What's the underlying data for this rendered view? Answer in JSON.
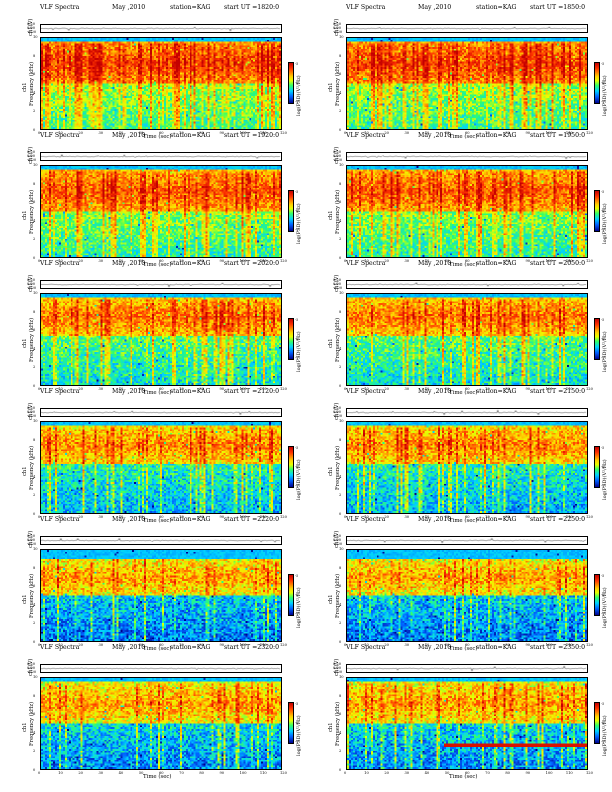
{
  "figure": {
    "panel_title": "VLF Spectra",
    "date": "May ,2010",
    "station": "station=KAG",
    "start_prefix": "start UT =",
    "ts_ylabel": "ch1(V)",
    "ts_ticks": [
      "0.20",
      "0.00",
      "-0.20"
    ],
    "freq_ylabel": "Frequency (kHz)",
    "channel_label": "ch1",
    "colorbar_label": "log(PSD)(V²/Hz)",
    "colorbar_ticks": [
      "-5",
      "-6",
      "-7"
    ],
    "xlabel": "Time (sec)",
    "x_ticks": [
      "0",
      "10",
      "20",
      "30",
      "40",
      "50",
      "60",
      "70",
      "80",
      "90",
      "100",
      "110",
      "120"
    ],
    "y_ticks": [
      "10",
      "8",
      "6",
      "4",
      "2",
      "0"
    ]
  },
  "chart_data": [
    {
      "type": "heatmap",
      "title": "VLF Spectra  May ,2010  station=KAG  start UT =1820:0",
      "start_ut": "1820:0",
      "xlabel": "Time (sec)",
      "ylabel": "Frequency (kHz)",
      "xlim": [
        0,
        120
      ],
      "ylim": [
        0,
        10
      ],
      "ts_ylim": [
        -0.2,
        0.2
      ],
      "colorbar_label": "log(PSD)(V²/Hz)",
      "band_khz": [
        5,
        9.5
      ],
      "z_base": 0.52,
      "z_band": 0.85,
      "spike_rate": 0.35,
      "noise": 0.12,
      "hum_khz": null
    },
    {
      "type": "heatmap",
      "title": "VLF Spectra  May ,2010  station=KAG  start UT =1850:0",
      "start_ut": "1850:0",
      "xlabel": "Time (sec)",
      "ylabel": "Frequency (kHz)",
      "xlim": [
        0,
        120
      ],
      "ylim": [
        0,
        10
      ],
      "ts_ylim": [
        -0.2,
        0.2
      ],
      "colorbar_label": "log(PSD)(V²/Hz)",
      "band_khz": [
        5,
        9.5
      ],
      "z_base": 0.52,
      "z_band": 0.85,
      "spike_rate": 0.38,
      "noise": 0.12,
      "hum_khz": null
    },
    {
      "type": "heatmap",
      "title": "VLF Spectra  May ,2010  station=KAG  start UT =1920:0",
      "start_ut": "1920:0",
      "xlabel": "Time (sec)",
      "ylabel": "Frequency (kHz)",
      "xlim": [
        0,
        120
      ],
      "ylim": [
        0,
        10
      ],
      "ts_ylim": [
        -0.2,
        0.2
      ],
      "colorbar_label": "log(PSD)(V²/Hz)",
      "band_khz": [
        5,
        9.5
      ],
      "z_base": 0.5,
      "z_band": 0.82,
      "spike_rate": 0.3,
      "noise": 0.12,
      "hum_khz": null
    },
    {
      "type": "heatmap",
      "title": "VLF Spectra  May ,2010  station=KAG  start UT =1950:0",
      "start_ut": "1950:0",
      "xlabel": "Time (sec)",
      "ylabel": "Frequency (kHz)",
      "xlim": [
        0,
        120
      ],
      "ylim": [
        0,
        10
      ],
      "ts_ylim": [
        -0.2,
        0.2
      ],
      "colorbar_label": "log(PSD)(V²/Hz)",
      "band_khz": [
        5,
        9.5
      ],
      "z_base": 0.5,
      "z_band": 0.82,
      "spike_rate": 0.32,
      "noise": 0.12,
      "hum_khz": null
    },
    {
      "type": "heatmap",
      "title": "VLF Spectra  May ,2010  station=KAG  start UT =2020:0",
      "start_ut": "2020:0",
      "xlabel": "Time (sec)",
      "ylabel": "Frequency (kHz)",
      "xlim": [
        0,
        120
      ],
      "ylim": [
        0,
        10
      ],
      "ts_ylim": [
        -0.2,
        0.2
      ],
      "colorbar_label": "log(PSD)(V²/Hz)",
      "band_khz": [
        5.5,
        9.5
      ],
      "z_base": 0.45,
      "z_band": 0.78,
      "spike_rate": 0.22,
      "noise": 0.13,
      "hum_khz": null
    },
    {
      "type": "heatmap",
      "title": "VLF Spectra  May ,2010  station=KAG  start UT =2050:0",
      "start_ut": "2050:0",
      "xlabel": "Time (sec)",
      "ylabel": "Frequency (kHz)",
      "xlim": [
        0,
        120
      ],
      "ylim": [
        0,
        10
      ],
      "ts_ylim": [
        -0.2,
        0.2
      ],
      "colorbar_label": "log(PSD)(V²/Hz)",
      "band_khz": [
        5.5,
        9.5
      ],
      "z_base": 0.45,
      "z_band": 0.78,
      "spike_rate": 0.22,
      "noise": 0.13,
      "hum_khz": null
    },
    {
      "type": "heatmap",
      "title": "VLF Spectra  May ,2010  station=KAG  start UT =2120:0",
      "start_ut": "2120:0",
      "xlabel": "Time (sec)",
      "ylabel": "Frequency (kHz)",
      "xlim": [
        0,
        120
      ],
      "ylim": [
        0,
        10
      ],
      "ts_ylim": [
        -0.2,
        0.2
      ],
      "colorbar_label": "log(PSD)(V²/Hz)",
      "band_khz": [
        5.5,
        9.5
      ],
      "z_base": 0.38,
      "z_band": 0.75,
      "spike_rate": 0.2,
      "noise": 0.14,
      "hum_khz": null
    },
    {
      "type": "heatmap",
      "title": "VLF Spectra  May ,2010  station=KAG  start UT =2150:0",
      "start_ut": "2150:0",
      "xlabel": "Time (sec)",
      "ylabel": "Frequency (kHz)",
      "xlim": [
        0,
        120
      ],
      "ylim": [
        0,
        10
      ],
      "ts_ylim": [
        -0.2,
        0.2
      ],
      "colorbar_label": "log(PSD)(V²/Hz)",
      "band_khz": [
        5.5,
        9.5
      ],
      "z_base": 0.38,
      "z_band": 0.75,
      "spike_rate": 0.2,
      "noise": 0.14,
      "hum_khz": null
    },
    {
      "type": "heatmap",
      "title": "VLF Spectra  May ,2010  station=KAG  start UT =2220:0",
      "start_ut": "2220:0",
      "xlabel": "Time (sec)",
      "ylabel": "Frequency (kHz)",
      "xlim": [
        0,
        120
      ],
      "ylim": [
        0,
        10
      ],
      "ts_ylim": [
        -0.2,
        0.2
      ],
      "colorbar_label": "log(PSD)(V²/Hz)",
      "band_khz": [
        5,
        9
      ],
      "z_base": 0.3,
      "z_band": 0.72,
      "spike_rate": 0.18,
      "noise": 0.15,
      "hum_khz": null
    },
    {
      "type": "heatmap",
      "title": "VLF Spectra  May ,2010  station=KAG  start UT =2250:0",
      "start_ut": "2250:0",
      "xlabel": "Time (sec)",
      "ylabel": "Frequency (kHz)",
      "xlim": [
        0,
        120
      ],
      "ylim": [
        0,
        10
      ],
      "ts_ylim": [
        -0.2,
        0.2
      ],
      "colorbar_label": "log(PSD)(V²/Hz)",
      "band_khz": [
        5,
        9
      ],
      "z_base": 0.3,
      "z_band": 0.72,
      "spike_rate": 0.18,
      "noise": 0.15,
      "hum_khz": null
    },
    {
      "type": "heatmap",
      "title": "VLF Spectra  May ,2010  station=KAG  start UT =2320:0",
      "start_ut": "2320:0",
      "xlabel": "Time (sec)",
      "ylabel": "Frequency (kHz)",
      "xlim": [
        0,
        120
      ],
      "ylim": [
        0,
        10
      ],
      "ts_ylim": [
        -0.2,
        0.2
      ],
      "colorbar_label": "log(PSD)(V²/Hz)",
      "band_khz": [
        5,
        9.5
      ],
      "z_base": 0.32,
      "z_band": 0.72,
      "spike_rate": 0.2,
      "noise": 0.15,
      "hum_khz": null
    },
    {
      "type": "heatmap",
      "title": "VLF Spectra  May ,2010  station=KAG  start UT =2350:0",
      "start_ut": "2350:0",
      "xlabel": "Time (sec)",
      "ylabel": "Frequency (kHz)",
      "xlim": [
        0,
        120
      ],
      "ylim": [
        0,
        10
      ],
      "ts_ylim": [
        -0.2,
        0.2
      ],
      "colorbar_label": "log(PSD)(V²/Hz)",
      "band_khz": [
        5,
        9.5
      ],
      "z_base": 0.32,
      "z_band": 0.72,
      "spike_rate": 0.2,
      "noise": 0.15,
      "hum_khz": [
        2.6,
        49
      ]
    }
  ]
}
